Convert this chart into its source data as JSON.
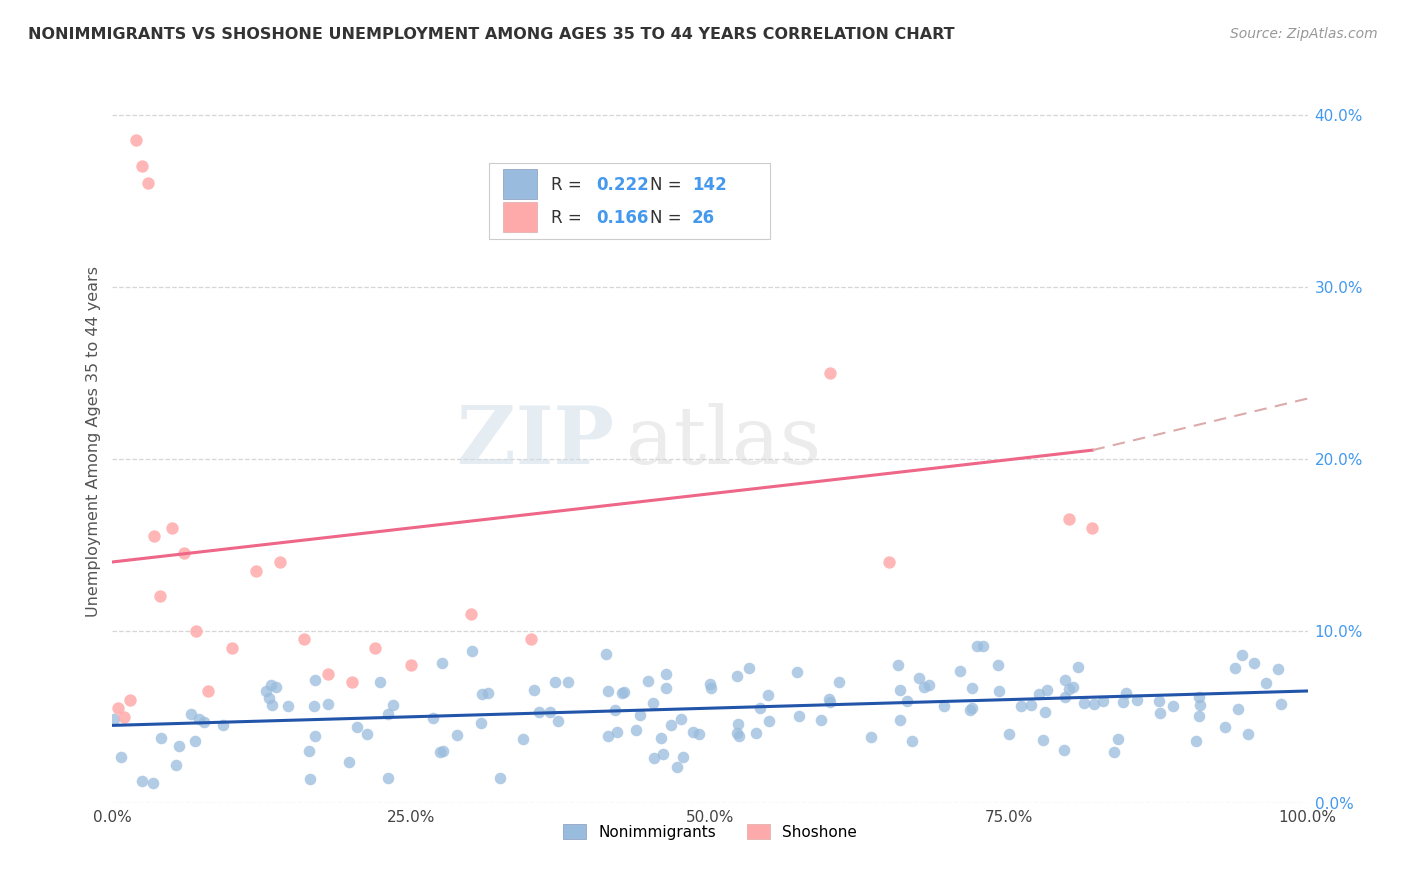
{
  "title": "NONIMMIGRANTS VS SHOSHONE UNEMPLOYMENT AMONG AGES 35 TO 44 YEARS CORRELATION CHART",
  "source": "Source: ZipAtlas.com",
  "ylabel": "Unemployment Among Ages 35 to 44 years",
  "watermark_text": "ZIP",
  "watermark_text2": "atlas",
  "nonimmigrants_R": 0.222,
  "nonimmigrants_N": 142,
  "shoshone_R": 0.166,
  "shoshone_N": 26,
  "blue_scatter_color": "#99BBDD",
  "pink_scatter_color": "#FFAAAA",
  "blue_line_color": "#2255AA",
  "pink_line_color": "#EE6688",
  "pink_dash_color": "#DDAAAA",
  "axis_tick_color": "#4499EE",
  "title_color": "#333333",
  "ylabel_color": "#555555",
  "xmin": 0.0,
  "xmax": 100.0,
  "ymin": 0.0,
  "ymax": 42.0,
  "yticks": [
    0.0,
    10.0,
    20.0,
    30.0,
    40.0
  ],
  "xticks": [
    0.0,
    25.0,
    50.0,
    75.0,
    100.0
  ],
  "background_color": "#ffffff",
  "grid_color": "#cccccc",
  "nonimm_trend": [
    0.0,
    4.5,
    100.0,
    6.5
  ],
  "shoshone_trend_solid": [
    0.0,
    14.0,
    82.0,
    20.5
  ],
  "shoshone_trend_dash": [
    82.0,
    20.5,
    100.0,
    23.5
  ]
}
